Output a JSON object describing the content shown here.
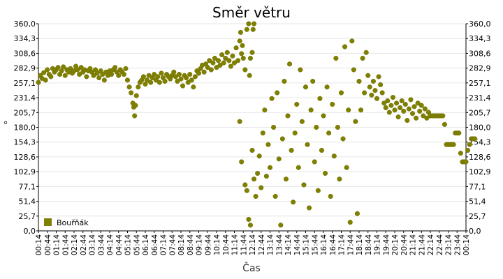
{
  "chart_data": {
    "type": "scatter",
    "title": "Směr větru",
    "xlabel": "Čas",
    "ylabel": "°",
    "ylim": [
      0,
      360
    ],
    "yticks": [
      "0,0",
      "25,7",
      "51,4",
      "77,1",
      "102,9",
      "128,6",
      "154,3",
      "180,0",
      "205,7",
      "231,4",
      "257,1",
      "282,9",
      "308,6",
      "334,3",
      "360,0"
    ],
    "xticks": [
      "00:14",
      "00:44",
      "01:14",
      "01:44",
      "02:14",
      "02:44",
      "03:14",
      "03:44",
      "04:14",
      "04:44",
      "05:14",
      "05:44",
      "06:14",
      "06:44",
      "07:14",
      "07:44",
      "08:14",
      "08:44",
      "09:14",
      "09:44",
      "10:14",
      "10:44",
      "11:14",
      "11:44",
      "12:14",
      "12:44",
      "13:14",
      "13:44",
      "14:14",
      "14:44",
      "15:14",
      "15:44",
      "16:14",
      "16:44",
      "17:14",
      "17:44",
      "18:14",
      "18:44",
      "19:14",
      "19:44",
      "20:14",
      "20:44",
      "21:14",
      "21:44",
      "22:14",
      "22:44",
      "23:14",
      "23:44",
      "00:14"
    ],
    "grid": true,
    "legend_position": "bottom-left",
    "series": [
      {
        "name": "Bouřňák",
        "color": "#808000",
        "points": [
          [
            0.0,
            258
          ],
          [
            0.1,
            270
          ],
          [
            0.2,
            265
          ],
          [
            0.3,
            275
          ],
          [
            0.4,
            262
          ],
          [
            0.5,
            280
          ],
          [
            0.6,
            272
          ],
          [
            0.7,
            268
          ],
          [
            0.8,
            282
          ],
          [
            0.9,
            276
          ],
          [
            1.0,
            280
          ],
          [
            1.1,
            284
          ],
          [
            1.2,
            272
          ],
          [
            1.3,
            278
          ],
          [
            1.4,
            285
          ],
          [
            1.5,
            270
          ],
          [
            1.6,
            280
          ],
          [
            1.7,
            276
          ],
          [
            1.8,
            282
          ],
          [
            1.9,
            274
          ],
          [
            2.0,
            278
          ],
          [
            2.1,
            286
          ],
          [
            2.2,
            280
          ],
          [
            2.3,
            272
          ],
          [
            2.4,
            284
          ],
          [
            2.5,
            276
          ],
          [
            2.6,
            280
          ],
          [
            2.7,
            268
          ],
          [
            2.8,
            278
          ],
          [
            2.9,
            282
          ],
          [
            3.0,
            276
          ],
          [
            3.1,
            270
          ],
          [
            3.2,
            280
          ],
          [
            3.3,
            274
          ],
          [
            3.4,
            266
          ],
          [
            3.5,
            278
          ],
          [
            3.6,
            272
          ],
          [
            3.7,
            262
          ],
          [
            3.8,
            276
          ],
          [
            3.9,
            270
          ],
          [
            4.0,
            278
          ],
          [
            4.1,
            272
          ],
          [
            4.2,
            280
          ],
          [
            4.3,
            284
          ],
          [
            4.4,
            276
          ],
          [
            4.5,
            270
          ],
          [
            4.6,
            280
          ],
          [
            4.7,
            276
          ],
          [
            4.8,
            272
          ],
          [
            4.9,
            282
          ],
          [
            5.0,
            262
          ],
          [
            5.1,
            250
          ],
          [
            5.2,
            240
          ],
          [
            5.3,
            222
          ],
          [
            5.35,
            215
          ],
          [
            5.4,
            200
          ],
          [
            5.45,
            218
          ],
          [
            5.5,
            235
          ],
          [
            5.6,
            250
          ],
          [
            5.7,
            258
          ],
          [
            5.8,
            262
          ],
          [
            5.9,
            268
          ],
          [
            6.0,
            255
          ],
          [
            6.1,
            262
          ],
          [
            6.2,
            270
          ],
          [
            6.3,
            258
          ],
          [
            6.4,
            266
          ],
          [
            6.5,
            272
          ],
          [
            6.6,
            262
          ],
          [
            6.7,
            268
          ],
          [
            6.8,
            258
          ],
          [
            6.9,
            274
          ],
          [
            7.0,
            266
          ],
          [
            7.1,
            260
          ],
          [
            7.2,
            272
          ],
          [
            7.3,
            268
          ],
          [
            7.4,
            264
          ],
          [
            7.5,
            270
          ],
          [
            7.6,
            276
          ],
          [
            7.7,
            268
          ],
          [
            7.8,
            260
          ],
          [
            7.9,
            272
          ],
          [
            8.0,
            264
          ],
          [
            8.1,
            252
          ],
          [
            8.2,
            270
          ],
          [
            8.3,
            266
          ],
          [
            8.4,
            258
          ],
          [
            8.5,
            272
          ],
          [
            8.6,
            262
          ],
          [
            8.7,
            250
          ],
          [
            8.8,
            268
          ],
          [
            8.9,
            278
          ],
          [
            9.0,
            274
          ],
          [
            9.1,
            282
          ],
          [
            9.2,
            288
          ],
          [
            9.3,
            276
          ],
          [
            9.4,
            290
          ],
          [
            9.5,
            284
          ],
          [
            9.6,
            296
          ],
          [
            9.7,
            280
          ],
          [
            9.8,
            292
          ],
          [
            9.9,
            300
          ],
          [
            10.0,
            284
          ],
          [
            10.1,
            296
          ],
          [
            10.2,
            288
          ],
          [
            10.3,
            306
          ],
          [
            10.4,
            292
          ],
          [
            10.5,
            300
          ],
          [
            10.6,
            310
          ],
          [
            10.7,
            296
          ],
          [
            10.8,
            286
          ],
          [
            10.9,
            304
          ],
          [
            11.0,
            292
          ],
          [
            11.1,
            318
          ],
          [
            11.2,
            296
          ],
          [
            11.3,
            330
          ],
          [
            11.35,
            345
          ],
          [
            11.4,
            308
          ],
          [
            11.45,
            322
          ],
          [
            11.5,
            300
          ],
          [
            11.6,
            280
          ],
          [
            11.7,
            350
          ],
          [
            11.8,
            360
          ],
          [
            11.85,
            270
          ],
          [
            11.9,
            300
          ],
          [
            12.0,
            310
          ],
          [
            12.05,
            350
          ],
          [
            12.1,
            360
          ],
          [
            11.3,
            190
          ],
          [
            11.4,
            120
          ],
          [
            11.6,
            80
          ],
          [
            11.7,
            70
          ],
          [
            11.8,
            20
          ],
          [
            11.9,
            10
          ],
          [
            12.0,
            140
          ],
          [
            12.1,
            90
          ],
          [
            12.2,
            60
          ],
          [
            12.3,
            100
          ],
          [
            12.4,
            130
          ],
          [
            12.5,
            75
          ],
          [
            12.6,
            170
          ],
          [
            12.7,
            210
          ],
          [
            12.8,
            95
          ],
          [
            12.9,
            150
          ],
          [
            13.0,
            110
          ],
          [
            13.1,
            230
          ],
          [
            13.2,
            180
          ],
          [
            13.3,
            60
          ],
          [
            13.4,
            240
          ],
          [
            13.5,
            125
          ],
          [
            13.6,
            10
          ],
          [
            13.7,
            160
          ],
          [
            13.8,
            260
          ],
          [
            13.9,
            90
          ],
          [
            14.0,
            200
          ],
          [
            14.1,
            290
          ],
          [
            14.2,
            140
          ],
          [
            14.3,
            50
          ],
          [
            14.4,
            170
          ],
          [
            14.5,
            220
          ],
          [
            14.6,
            110
          ],
          [
            14.7,
            280
          ],
          [
            14.8,
            190
          ],
          [
            14.9,
            80
          ],
          [
            15.0,
            250
          ],
          [
            15.1,
            150
          ],
          [
            15.2,
            40
          ],
          [
            15.3,
            210
          ],
          [
            15.4,
            260
          ],
          [
            15.5,
            120
          ],
          [
            15.6,
            180
          ],
          [
            15.7,
            70
          ],
          [
            15.8,
            230
          ],
          [
            15.9,
            140
          ],
          [
            16.0,
            200
          ],
          [
            16.1,
            100
          ],
          [
            16.2,
            250
          ],
          [
            16.3,
            170
          ],
          [
            16.4,
            60
          ],
          [
            16.5,
            220
          ],
          [
            16.6,
            130
          ],
          [
            16.7,
            300
          ],
          [
            16.8,
            180
          ],
          [
            16.9,
            90
          ],
          [
            17.0,
            240
          ],
          [
            17.1,
            160
          ],
          [
            17.2,
            320
          ],
          [
            17.3,
            110
          ],
          [
            17.4,
            210
          ],
          [
            17.5,
            15
          ],
          [
            17.6,
            330
          ],
          [
            17.7,
            280
          ],
          [
            17.8,
            190
          ],
          [
            17.9,
            30
          ],
          [
            18.0,
            260
          ],
          [
            18.1,
            210
          ],
          [
            18.2,
            300
          ],
          [
            18.3,
            240
          ],
          [
            18.4,
            310
          ],
          [
            18.5,
            270
          ],
          [
            18.6,
            250
          ],
          [
            18.7,
            236
          ],
          [
            18.8,
            260
          ],
          [
            18.9,
            244
          ],
          [
            19.0,
            230
          ],
          [
            19.1,
            268
          ],
          [
            19.2,
            254
          ],
          [
            19.3,
            240
          ],
          [
            19.4,
            222
          ],
          [
            19.5,
            214
          ],
          [
            19.6,
            226
          ],
          [
            19.7,
            206
          ],
          [
            19.8,
            218
          ],
          [
            19.9,
            232
          ],
          [
            20.0,
            210
          ],
          [
            20.1,
            222
          ],
          [
            20.2,
            198
          ],
          [
            20.3,
            214
          ],
          [
            20.4,
            226
          ],
          [
            20.5,
            208
          ],
          [
            20.6,
            220
          ],
          [
            20.7,
            192
          ],
          [
            20.8,
            212
          ],
          [
            20.9,
            228
          ],
          [
            21.0,
            204
          ],
          [
            21.1,
            216
          ],
          [
            21.2,
            196
          ],
          [
            21.3,
            222
          ],
          [
            21.4,
            208
          ],
          [
            21.5,
            218
          ],
          [
            21.6,
            200
          ],
          [
            21.7,
            212
          ],
          [
            21.8,
            196
          ],
          [
            21.9,
            206
          ],
          [
            22.0,
            200
          ],
          [
            22.1,
            200
          ],
          [
            22.2,
            200
          ],
          [
            22.3,
            200
          ],
          [
            22.4,
            200
          ],
          [
            22.5,
            200
          ],
          [
            22.6,
            200
          ],
          [
            22.7,
            200
          ],
          [
            22.8,
            185
          ],
          [
            22.9,
            150
          ],
          [
            23.0,
            150
          ],
          [
            23.1,
            150
          ],
          [
            23.2,
            150
          ],
          [
            23.3,
            150
          ],
          [
            23.4,
            170
          ],
          [
            23.5,
            170
          ],
          [
            23.6,
            170
          ],
          [
            23.7,
            135
          ],
          [
            23.8,
            120
          ],
          [
            23.9,
            120
          ],
          [
            24.0,
            120
          ],
          [
            24.1,
            140
          ],
          [
            24.2,
            150
          ],
          [
            24.3,
            160
          ],
          [
            24.4,
            160
          ],
          [
            24.5,
            160
          ]
        ]
      }
    ]
  }
}
